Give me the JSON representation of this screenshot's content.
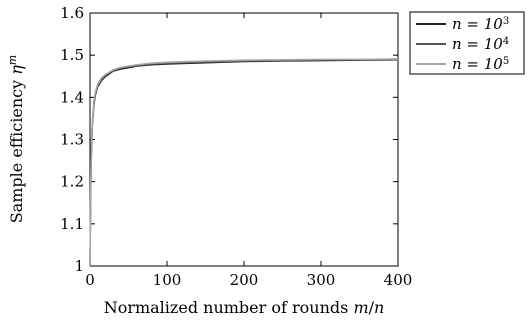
{
  "chart_data": {
    "type": "line",
    "xlabel": "Normalized number of rounds m/n",
    "ylabel": "Sample efficiency η^m",
    "xlim": [
      0,
      400
    ],
    "ylim": [
      1.0,
      1.6
    ],
    "xticks": [
      0,
      100,
      200,
      300,
      400
    ],
    "xtick_labels": [
      "0",
      "100",
      "200",
      "300",
      "400"
    ],
    "yticks": [
      1.0,
      1.1,
      1.2,
      1.3,
      1.4,
      1.5,
      1.6
    ],
    "ytick_labels": [
      "1",
      "1.1",
      "1.2",
      "1.3",
      "1.4",
      "1.5",
      "1.6"
    ],
    "grid": false,
    "legend_position": "outside-right-top",
    "series": [
      {
        "name": "n = 10^3",
        "name_base": "n = 10",
        "name_exp": "3",
        "color": "#222222",
        "x": [
          0,
          1,
          2,
          3,
          5,
          7,
          10,
          15,
          20,
          30,
          40,
          50,
          60,
          80,
          100,
          150,
          200,
          250,
          300,
          350,
          400
        ],
        "y": [
          1.0,
          1.18,
          1.28,
          1.33,
          1.38,
          1.405,
          1.425,
          1.44,
          1.449,
          1.462,
          1.467,
          1.47,
          1.474,
          1.477,
          1.479,
          1.482,
          1.485,
          1.486,
          1.487,
          1.488,
          1.489
        ]
      },
      {
        "name": "n = 10^4",
        "name_base": "n = 10",
        "name_exp": "4",
        "color": "#555555",
        "x": [
          0,
          1,
          2,
          3,
          5,
          7,
          10,
          15,
          20,
          30,
          40,
          50,
          60,
          80,
          100,
          150,
          200,
          250,
          300,
          350,
          400
        ],
        "y": [
          1.0,
          1.19,
          1.29,
          1.335,
          1.385,
          1.408,
          1.428,
          1.443,
          1.452,
          1.463,
          1.469,
          1.472,
          1.475,
          1.479,
          1.481,
          1.484,
          1.486,
          1.487,
          1.488,
          1.489,
          1.49
        ]
      },
      {
        "name": "n = 10^5",
        "name_base": "n = 10",
        "name_exp": "5",
        "color": "#a6a6a6",
        "x": [
          0,
          1,
          2,
          3,
          5,
          7,
          10,
          15,
          20,
          30,
          40,
          50,
          60,
          80,
          100,
          150,
          200,
          250,
          300,
          350,
          400
        ],
        "y": [
          1.0,
          1.2,
          1.3,
          1.34,
          1.39,
          1.412,
          1.431,
          1.446,
          1.454,
          1.465,
          1.471,
          1.474,
          1.477,
          1.481,
          1.483,
          1.486,
          1.488,
          1.489,
          1.49,
          1.49,
          1.491
        ]
      }
    ]
  }
}
